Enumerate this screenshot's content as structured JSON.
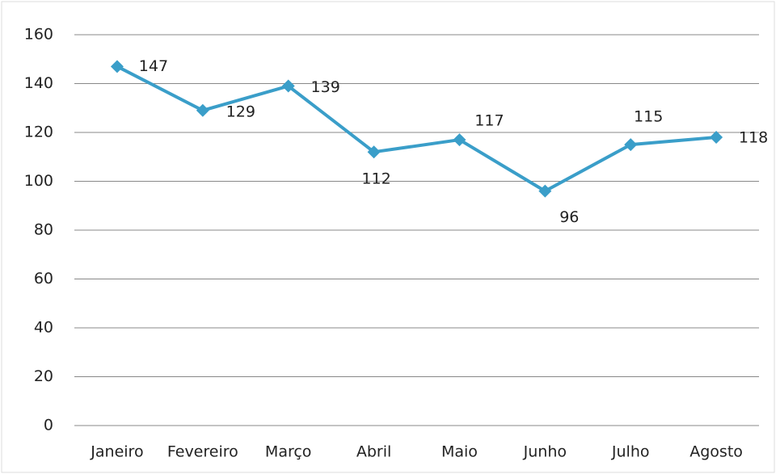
{
  "chart_data": {
    "type": "line",
    "categories": [
      "Janeiro",
      "Fevereiro",
      "Março",
      "Abril",
      "Maio",
      "Junho",
      "Julho",
      "Agosto"
    ],
    "series": [
      {
        "color": "#3a9ec9",
        "values": [
          147,
          129,
          139,
          112,
          117,
          96,
          115,
          118
        ]
      }
    ],
    "ylim": [
      0,
      160
    ],
    "yticks": [
      0,
      20,
      40,
      60,
      80,
      100,
      120,
      140,
      160
    ],
    "grid": true
  }
}
